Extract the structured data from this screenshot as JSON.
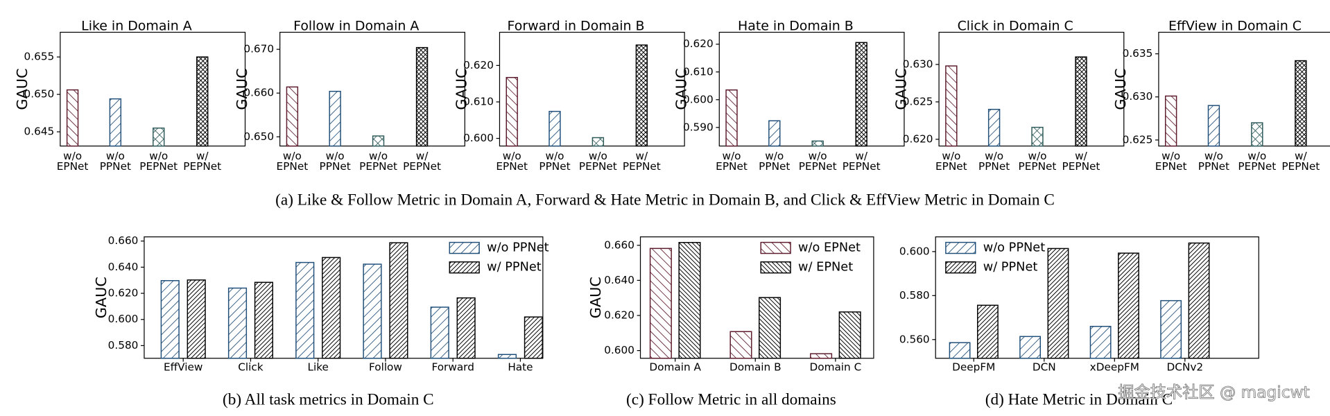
{
  "chart_data": [
    {
      "type": "bar",
      "title": "Like in Domain A",
      "ylabel": "GAUC",
      "categories": [
        [
          "w/o",
          "EPNet"
        ],
        [
          "w/o",
          "PPNet"
        ],
        [
          "w/o",
          "PEPNet"
        ],
        [
          "w/",
          "PEPNet"
        ]
      ],
      "values": [
        0.6506,
        0.6494,
        0.6455,
        0.655
      ],
      "colors": [
        "#5c1a2b",
        "#1f4e79",
        "#2e5b5a",
        "#000000"
      ],
      "hatches": [
        "\\",
        "/",
        "x",
        "xx"
      ],
      "ylim": [
        0.6431,
        0.6583
      ],
      "yticks": [
        0.645,
        {
          "value": 0.65,
          "label": "0.650"
        },
        0.655
      ]
    },
    {
      "type": "bar",
      "title": "Follow in Domain A",
      "ylabel": "GAUC",
      "categories": [
        [
          "w/o",
          "EPNet"
        ],
        [
          "w/o",
          "PPNet"
        ],
        [
          "w/o",
          "PEPNet"
        ],
        [
          "w/",
          "PEPNet"
        ]
      ],
      "values": [
        0.6614,
        0.6604,
        0.6502,
        0.6704
      ],
      "colors": [
        "#5c1a2b",
        "#1f4e79",
        "#2e5b5a",
        "#000000"
      ],
      "hatches": [
        "\\",
        "/",
        "x",
        "xx"
      ],
      "ylim": [
        0.6479,
        0.6739
      ],
      "yticks": [
        {
          "value": 0.65,
          "label": "0.650"
        },
        {
          "value": 0.66,
          "label": "0.660"
        },
        {
          "value": 0.67,
          "label": "0.670"
        }
      ]
    },
    {
      "type": "bar",
      "title": "Forward in Domain B",
      "ylabel": "GAUC",
      "categories": [
        [
          "w/o",
          "EPNet"
        ],
        [
          "w/o",
          "PPNet"
        ],
        [
          "w/o",
          "PEPNet"
        ],
        [
          "w/",
          "PEPNet"
        ]
      ],
      "values": [
        0.6167,
        0.6074,
        0.6002,
        0.6256
      ],
      "colors": [
        "#5c1a2b",
        "#1f4e79",
        "#2e5b5a",
        "#000000"
      ],
      "hatches": [
        "\\",
        "/",
        "x",
        "xx"
      ],
      "ylim": [
        0.5979,
        0.6291
      ],
      "yticks": [
        {
          "value": 0.6,
          "label": "0.600"
        },
        {
          "value": 0.61,
          "label": "0.610"
        },
        {
          "value": 0.62,
          "label": "0.620"
        }
      ]
    },
    {
      "type": "bar",
      "title": "Hate in Domain B",
      "ylabel": "GAUC",
      "categories": [
        [
          "w/o",
          "EPNet"
        ],
        [
          "w/o",
          "PPNet"
        ],
        [
          "w/o",
          "PEPNet"
        ],
        [
          "w/",
          "PEPNet"
        ]
      ],
      "values": [
        0.6035,
        0.5924,
        0.5851,
        0.6206
      ],
      "colors": [
        "#5c1a2b",
        "#1f4e79",
        "#2e5b5a",
        "#000000"
      ],
      "hatches": [
        "\\",
        "/",
        "x",
        "xx"
      ],
      "ylim": [
        0.5833,
        0.6243
      ],
      "yticks": [
        {
          "value": 0.59,
          "label": "0.590"
        },
        {
          "value": 0.6,
          "label": "0.600"
        },
        {
          "value": 0.61,
          "label": "0.610"
        },
        {
          "value": 0.62,
          "label": "0.620"
        }
      ]
    },
    {
      "type": "bar",
      "title": "Click in Domain C",
      "ylabel": "GAUC",
      "categories": [
        [
          "w/o",
          "EPNet"
        ],
        [
          "w/o",
          "PPNet"
        ],
        [
          "w/o",
          "PEPNet"
        ],
        [
          "w/",
          "PEPNet"
        ]
      ],
      "values": [
        0.6298,
        0.624,
        0.6216,
        0.631
      ],
      "colors": [
        "#5c1a2b",
        "#1f4e79",
        "#2e5b5a",
        "#000000"
      ],
      "hatches": [
        "\\",
        "/",
        "x",
        "xx"
      ],
      "ylim": [
        0.6191,
        0.6343
      ],
      "yticks": [
        {
          "value": 0.62,
          "label": "0.620"
        },
        0.625,
        {
          "value": 0.63,
          "label": "0.630"
        }
      ]
    },
    {
      "type": "bar",
      "title": "EffView in Domain C",
      "ylabel": "GAUC",
      "categories": [
        [
          "w/o",
          "EPNet"
        ],
        [
          "w/o",
          "PPNet"
        ],
        [
          "w/o",
          "PEPNet"
        ],
        [
          "w/",
          "PEPNet"
        ]
      ],
      "values": [
        0.6301,
        0.629,
        0.627,
        0.6342
      ],
      "colors": [
        "#5c1a2b",
        "#1f4e79",
        "#2e5b5a",
        "#000000"
      ],
      "hatches": [
        "\\",
        "/",
        "x",
        "xx"
      ],
      "ylim": [
        0.6243,
        0.6375
      ],
      "yticks": [
        0.625,
        {
          "value": 0.63,
          "label": "0.630"
        },
        0.635
      ]
    },
    {
      "type": "bar",
      "ylabel": "GAUC",
      "categories": [
        "EffView",
        "Click",
        "Like",
        "Follow",
        "Forward",
        "Hate"
      ],
      "series": [
        {
          "name": "w/o PPNet",
          "color": "#1f4e79",
          "hatch": "/",
          "values": [
            0.6297,
            0.624,
            0.6436,
            0.6423,
            0.6094,
            0.5732
          ]
        },
        {
          "name": "w/ PPNet",
          "color": "#000000",
          "hatch": "//",
          "values": [
            0.6302,
            0.6284,
            0.6474,
            0.6587,
            0.6165,
            0.6019
          ]
        }
      ],
      "legend": "upper right",
      "ylim": [
        0.5703,
        0.6632
      ],
      "yticks": [
        {
          "value": 0.58,
          "label": "0.580"
        },
        {
          "value": 0.6,
          "label": "0.600"
        },
        {
          "value": 0.62,
          "label": "0.620"
        },
        {
          "value": 0.64,
          "label": "0.640"
        },
        {
          "value": 0.66,
          "label": "0.660"
        }
      ]
    },
    {
      "type": "bar",
      "ylabel": "GAUC",
      "categories": [
        "Domain A",
        "Domain B",
        "Domain C"
      ],
      "series": [
        {
          "name": "w/o EPNet",
          "color": "#5c1a2b",
          "hatch": "\\",
          "values": [
            0.6582,
            0.6108,
            0.5982
          ]
        },
        {
          "name": "w/ EPNet",
          "color": "#000000",
          "hatch": "\\\\",
          "values": [
            0.6616,
            0.6302,
            0.622
          ]
        }
      ],
      "legend": "upper right",
      "ylim": [
        0.5956,
        0.6648
      ],
      "yticks": [
        {
          "value": 0.6,
          "label": "0.600"
        },
        {
          "value": 0.62,
          "label": "0.620"
        },
        {
          "value": 0.64,
          "label": "0.640"
        },
        {
          "value": 0.66,
          "label": "0.660"
        }
      ]
    },
    {
      "type": "bar",
      "categories": [
        "DeepFM",
        "DCN",
        "xDeepFM",
        "DCNv2"
      ],
      "series": [
        {
          "name": "w/o PPNet",
          "color": "#1f4e79",
          "hatch": "/",
          "values": [
            0.5586,
            0.5614,
            0.566,
            0.5777
          ]
        },
        {
          "name": "w/ PPNet",
          "color": "#000000",
          "hatch": "//",
          "values": [
            0.5756,
            0.6014,
            0.5993,
            0.6039
          ]
        }
      ],
      "legend": "upper left",
      "ylim": [
        0.5515,
        0.6067
      ],
      "yticks": [
        {
          "value": 0.56,
          "label": "0.560"
        },
        {
          "value": 0.58,
          "label": "0.580"
        },
        {
          "value": 0.6,
          "label": "0.600"
        }
      ]
    }
  ],
  "captions": [
    "(a)  Like & Follow Metric in Domain A, Forward & Hate Metric in Domain B, and Click & EffView Metric in Domain C",
    "(b)  All task metrics in Domain C",
    "(c)  Follow Metric in all domains",
    "(d)  Hate Metric in Domain C"
  ],
  "watermark": "掘金技术社区 @ magicwt"
}
